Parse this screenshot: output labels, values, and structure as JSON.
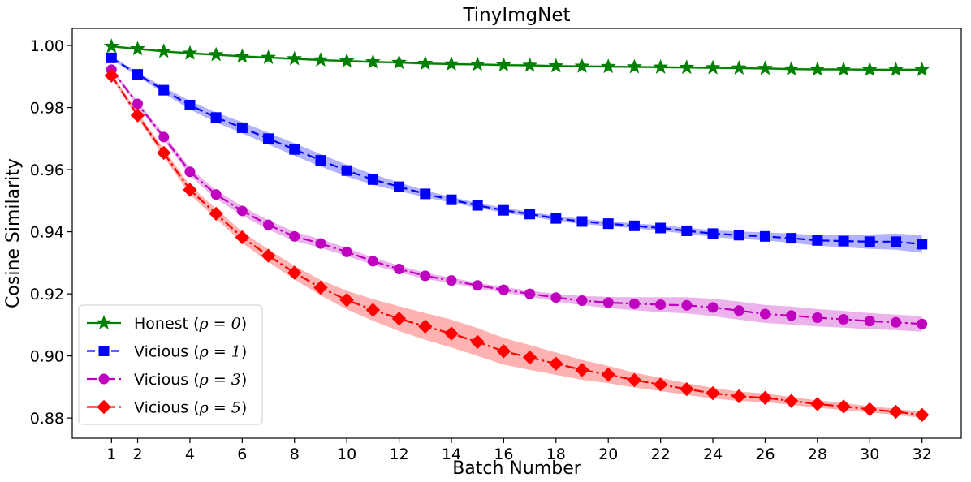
{
  "chart_data": {
    "type": "line",
    "title": "TinyImgNet",
    "xlabel": "Batch Number",
    "ylabel": "Cosine Similarity",
    "xlim": [
      -0.5,
      33.5
    ],
    "ylim": [
      0.8735,
      1.0055
    ],
    "xticks": [
      1,
      2,
      4,
      6,
      8,
      10,
      12,
      14,
      16,
      18,
      20,
      22,
      24,
      26,
      28,
      30,
      32
    ],
    "yticks": [
      0.88,
      0.9,
      0.92,
      0.94,
      0.96,
      0.98,
      1.0
    ],
    "ytick_labels": [
      "0.88",
      "0.90",
      "0.92",
      "0.94",
      "0.96",
      "0.98",
      "1.00"
    ],
    "grid": false,
    "legend_position": "lower-left",
    "x": [
      1,
      2,
      3,
      4,
      5,
      6,
      7,
      8,
      9,
      10,
      11,
      12,
      13,
      14,
      15,
      16,
      17,
      18,
      19,
      20,
      21,
      22,
      23,
      24,
      25,
      26,
      27,
      28,
      29,
      30,
      31,
      32
    ],
    "series": [
      {
        "name": "Honest (ρ = 0)",
        "legend_prefix": "Honest (",
        "legend_math": "ρ = 0",
        "legend_suffix": ")",
        "color": "#008000",
        "marker": "star",
        "linestyle": "solid",
        "values": [
          0.9997,
          0.9989,
          0.9981,
          0.9975,
          0.997,
          0.9965,
          0.9961,
          0.9957,
          0.9953,
          0.995,
          0.9947,
          0.9945,
          0.9942,
          0.994,
          0.9939,
          0.9937,
          0.9936,
          0.9934,
          0.9933,
          0.9932,
          0.9931,
          0.993,
          0.9929,
          0.9928,
          0.9927,
          0.9926,
          0.9924,
          0.9923,
          0.9923,
          0.9922,
          0.9922,
          0.9922
        ],
        "band": [
          0.0004,
          0.0004,
          0.0004,
          0.0004,
          0.0004,
          0.0004,
          0.0004,
          0.0004,
          0.0004,
          0.0004,
          0.0004,
          0.0004,
          0.0004,
          0.0004,
          0.0004,
          0.0004,
          0.0004,
          0.0004,
          0.0004,
          0.0004,
          0.0004,
          0.0004,
          0.0004,
          0.0004,
          0.0004,
          0.0004,
          0.0004,
          0.0004,
          0.0004,
          0.0004,
          0.0004,
          0.0004
        ]
      },
      {
        "name": "Vicious (ρ = 1)",
        "legend_prefix": "Vicious (",
        "legend_math": "ρ = 1",
        "legend_suffix": ")",
        "color": "#0000ff",
        "marker": "square",
        "linestyle": "dashed",
        "values": [
          0.996,
          0.9907,
          0.9856,
          0.9808,
          0.9768,
          0.9735,
          0.97,
          0.9665,
          0.963,
          0.9597,
          0.9568,
          0.9545,
          0.9522,
          0.9503,
          0.9485,
          0.9469,
          0.9457,
          0.9443,
          0.9433,
          0.9426,
          0.9419,
          0.9412,
          0.9403,
          0.9394,
          0.9389,
          0.9385,
          0.9379,
          0.9372,
          0.937,
          0.9368,
          0.9368,
          0.936
        ],
        "band": [
          0.0005,
          0.0007,
          0.001,
          0.0014,
          0.0016,
          0.0018,
          0.0019,
          0.002,
          0.002,
          0.0019,
          0.0017,
          0.0014,
          0.0011,
          0.0009,
          0.0008,
          0.0008,
          0.0008,
          0.0008,
          0.0008,
          0.0008,
          0.0008,
          0.0009,
          0.001,
          0.0011,
          0.0012,
          0.0013,
          0.0015,
          0.0017,
          0.002,
          0.0023,
          0.0026,
          0.0028
        ]
      },
      {
        "name": "Vicious (ρ = 3)",
        "legend_prefix": "Vicious (",
        "legend_math": "ρ = 3",
        "legend_suffix": ")",
        "color": "#bf00bf",
        "marker": "circle",
        "linestyle": "dashdot",
        "values": [
          0.9922,
          0.9812,
          0.9705,
          0.9593,
          0.952,
          0.9467,
          0.9422,
          0.9385,
          0.9362,
          0.9335,
          0.9305,
          0.928,
          0.9258,
          0.9243,
          0.9227,
          0.9213,
          0.92,
          0.9188,
          0.9178,
          0.9172,
          0.9168,
          0.9165,
          0.9163,
          0.9156,
          0.9146,
          0.9135,
          0.913,
          0.9123,
          0.9118,
          0.9112,
          0.9108,
          0.9103
        ],
        "band": [
          0.0005,
          0.0008,
          0.001,
          0.0012,
          0.0014,
          0.0015,
          0.0015,
          0.0015,
          0.0014,
          0.0013,
          0.0012,
          0.0011,
          0.001,
          0.0009,
          0.0009,
          0.0009,
          0.001,
          0.0012,
          0.0015,
          0.0018,
          0.0021,
          0.0024,
          0.0026,
          0.0028,
          0.0029,
          0.0029,
          0.0029,
          0.0028,
          0.0027,
          0.0026,
          0.0025,
          0.0025
        ]
      },
      {
        "name": "Vicious (ρ = 5)",
        "legend_prefix": "Vicious (",
        "legend_math": "ρ = 5",
        "legend_suffix": ")",
        "color": "#ff0000",
        "marker": "diamond",
        "linestyle": "dashdot",
        "values": [
          0.9903,
          0.9775,
          0.9654,
          0.9535,
          0.9458,
          0.9382,
          0.9323,
          0.9268,
          0.922,
          0.918,
          0.9148,
          0.912,
          0.9095,
          0.9072,
          0.9045,
          0.9015,
          0.8995,
          0.8975,
          0.8955,
          0.894,
          0.8922,
          0.8908,
          0.8893,
          0.888,
          0.887,
          0.8865,
          0.8855,
          0.8845,
          0.8837,
          0.8828,
          0.882,
          0.881
        ],
        "band": [
          0.0007,
          0.001,
          0.0013,
          0.0015,
          0.0016,
          0.0018,
          0.002,
          0.0022,
          0.0025,
          0.003,
          0.0035,
          0.004,
          0.0043,
          0.0045,
          0.0045,
          0.0043,
          0.004,
          0.0036,
          0.0032,
          0.0028,
          0.0024,
          0.0021,
          0.0019,
          0.0017,
          0.0015,
          0.0014,
          0.0013,
          0.0012,
          0.0011,
          0.001,
          0.001,
          0.001
        ]
      }
    ]
  }
}
